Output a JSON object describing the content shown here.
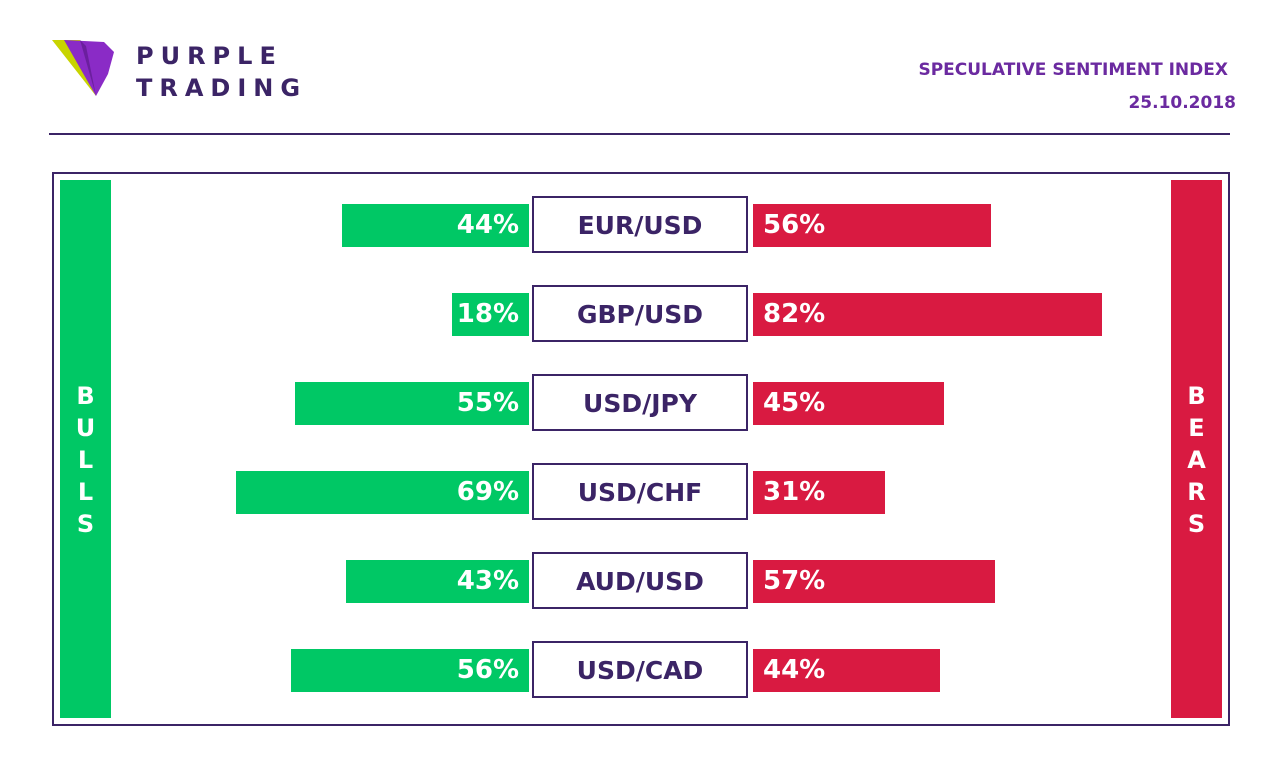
{
  "brand": {
    "line1": "PURPLE",
    "line2": "TRADING"
  },
  "header": {
    "title": "SPECULATIVE SENTIMENT INDEX",
    "date": "25.10.2018"
  },
  "labels": {
    "bulls": "B U L L S",
    "bears": "B E A R S"
  },
  "colors": {
    "bulls": "#00c865",
    "bears": "#d91a41",
    "brand": "#3b2466",
    "accent": "#6b2aa0"
  },
  "chart_data": {
    "type": "bar",
    "title": "SPECULATIVE SENTIMENT INDEX",
    "categories": [
      "EUR/USD",
      "GBP/USD",
      "USD/JPY",
      "USD/CHF",
      "AUD/USD",
      "USD/CAD"
    ],
    "series": [
      {
        "name": "BULLS",
        "values": [
          44,
          18,
          55,
          69,
          43,
          56
        ]
      },
      {
        "name": "BEARS",
        "values": [
          56,
          82,
          45,
          31,
          57,
          44
        ]
      }
    ],
    "value_labels": {
      "bulls": [
        "44%",
        "18%",
        "55%",
        "69%",
        "43%",
        "56%"
      ],
      "bears": [
        "56%",
        "82%",
        "45%",
        "31%",
        "57%",
        "44%"
      ]
    }
  }
}
